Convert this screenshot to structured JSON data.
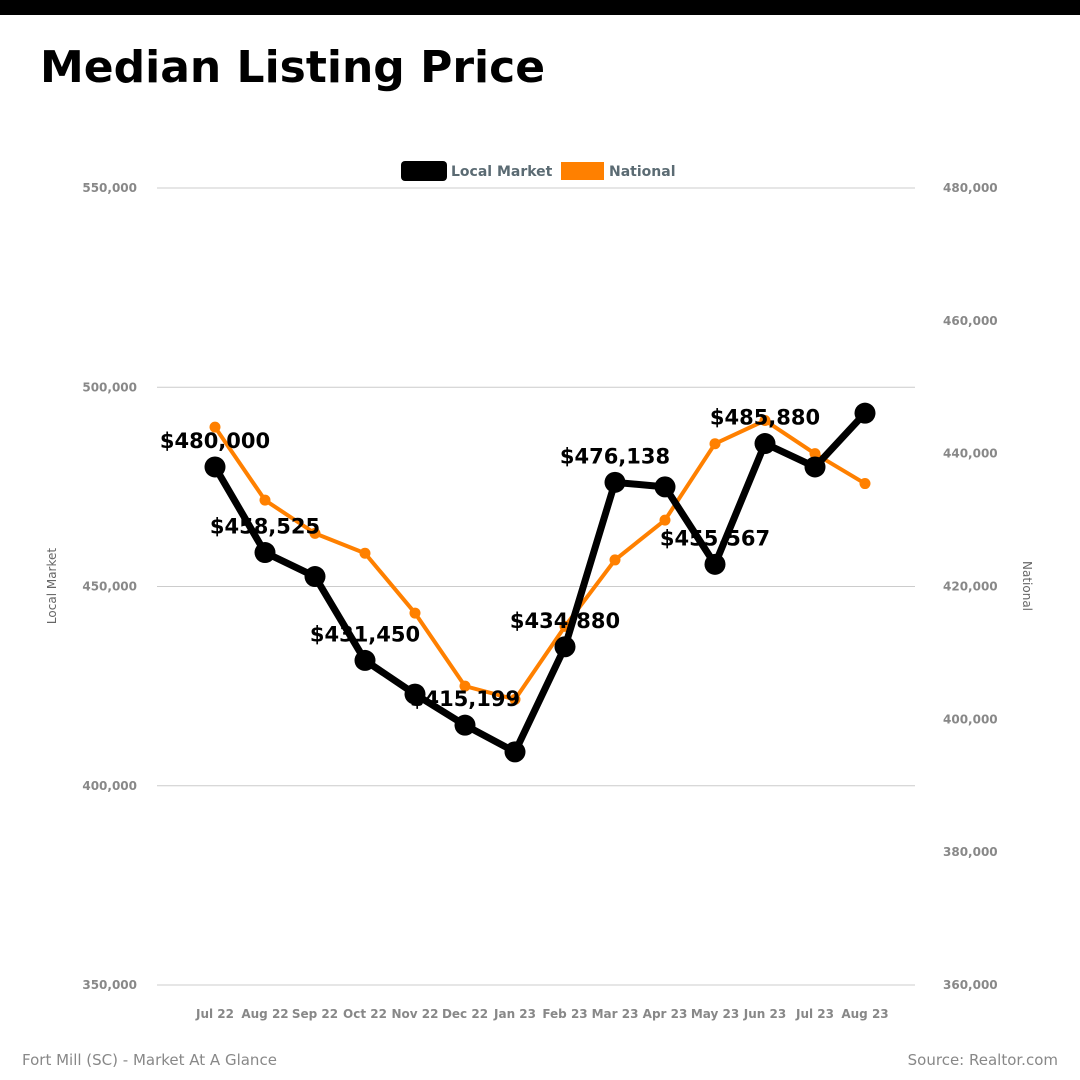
{
  "title": "Median Listing Price",
  "footer": {
    "left": "Fort Mill (SC) - Market At A Glance",
    "right": "Source: Realtor.com"
  },
  "colors": {
    "local": "#000000",
    "national": "#ff8000",
    "grid": "#cccccc",
    "tick_text": "#888888",
    "legend_text": "#5b6b73",
    "axis_label_text": "#666666"
  },
  "chart_data": {
    "type": "line",
    "categories": [
      "Jul 22",
      "Aug 22",
      "Sep 22",
      "Oct 22",
      "Nov 22",
      "Dec 22",
      "Jan 23",
      "Feb 23",
      "Mar 23",
      "Apr 23",
      "May 23",
      "Jun 23",
      "Jul 23",
      "Aug 23"
    ],
    "series": [
      {
        "name": "Local Market",
        "axis": "left",
        "values": [
          480000,
          458525,
          452500,
          431450,
          423000,
          415199,
          408500,
          434880,
          476138,
          475000,
          455567,
          485880,
          480000,
          493500
        ],
        "labels": [
          "$480,000",
          "$458,525",
          "",
          "$431,450",
          "",
          "$415,199",
          "",
          "$434,880",
          "$476,138",
          "",
          "$455,567",
          "$485,880",
          "",
          ""
        ]
      },
      {
        "name": "National",
        "axis": "right",
        "values": [
          444000,
          433000,
          428000,
          425000,
          416000,
          405000,
          403000,
          414000,
          424000,
          430000,
          441500,
          445000,
          440000,
          435500
        ]
      }
    ],
    "left_axis": {
      "label": "Local Market",
      "min": 350000,
      "max": 550000,
      "ticks": [
        550000,
        500000,
        450000,
        400000,
        350000
      ],
      "tick_labels": [
        "550,000",
        "500,000",
        "450,000",
        "400,000",
        "350,000"
      ]
    },
    "right_axis": {
      "label": "National",
      "min": 360000,
      "max": 480000,
      "ticks": [
        480000,
        460000,
        440000,
        420000,
        400000,
        380000,
        360000
      ],
      "tick_labels": [
        "480,000",
        "460,000",
        "440,000",
        "420,000",
        "400,000",
        "380,000",
        "360,000"
      ]
    },
    "grid": true,
    "legend_position": "top-center"
  }
}
